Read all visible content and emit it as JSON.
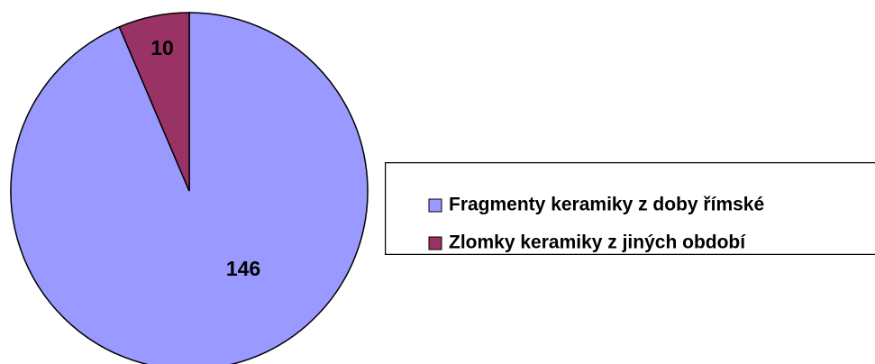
{
  "chart_data": {
    "type": "pie",
    "categories": [
      "Fragmenty keramiky z doby římské",
      "Zlomky keramiky z jiných období"
    ],
    "values": [
      146,
      10
    ],
    "colors": [
      "#9999ff",
      "#993366"
    ]
  }
}
